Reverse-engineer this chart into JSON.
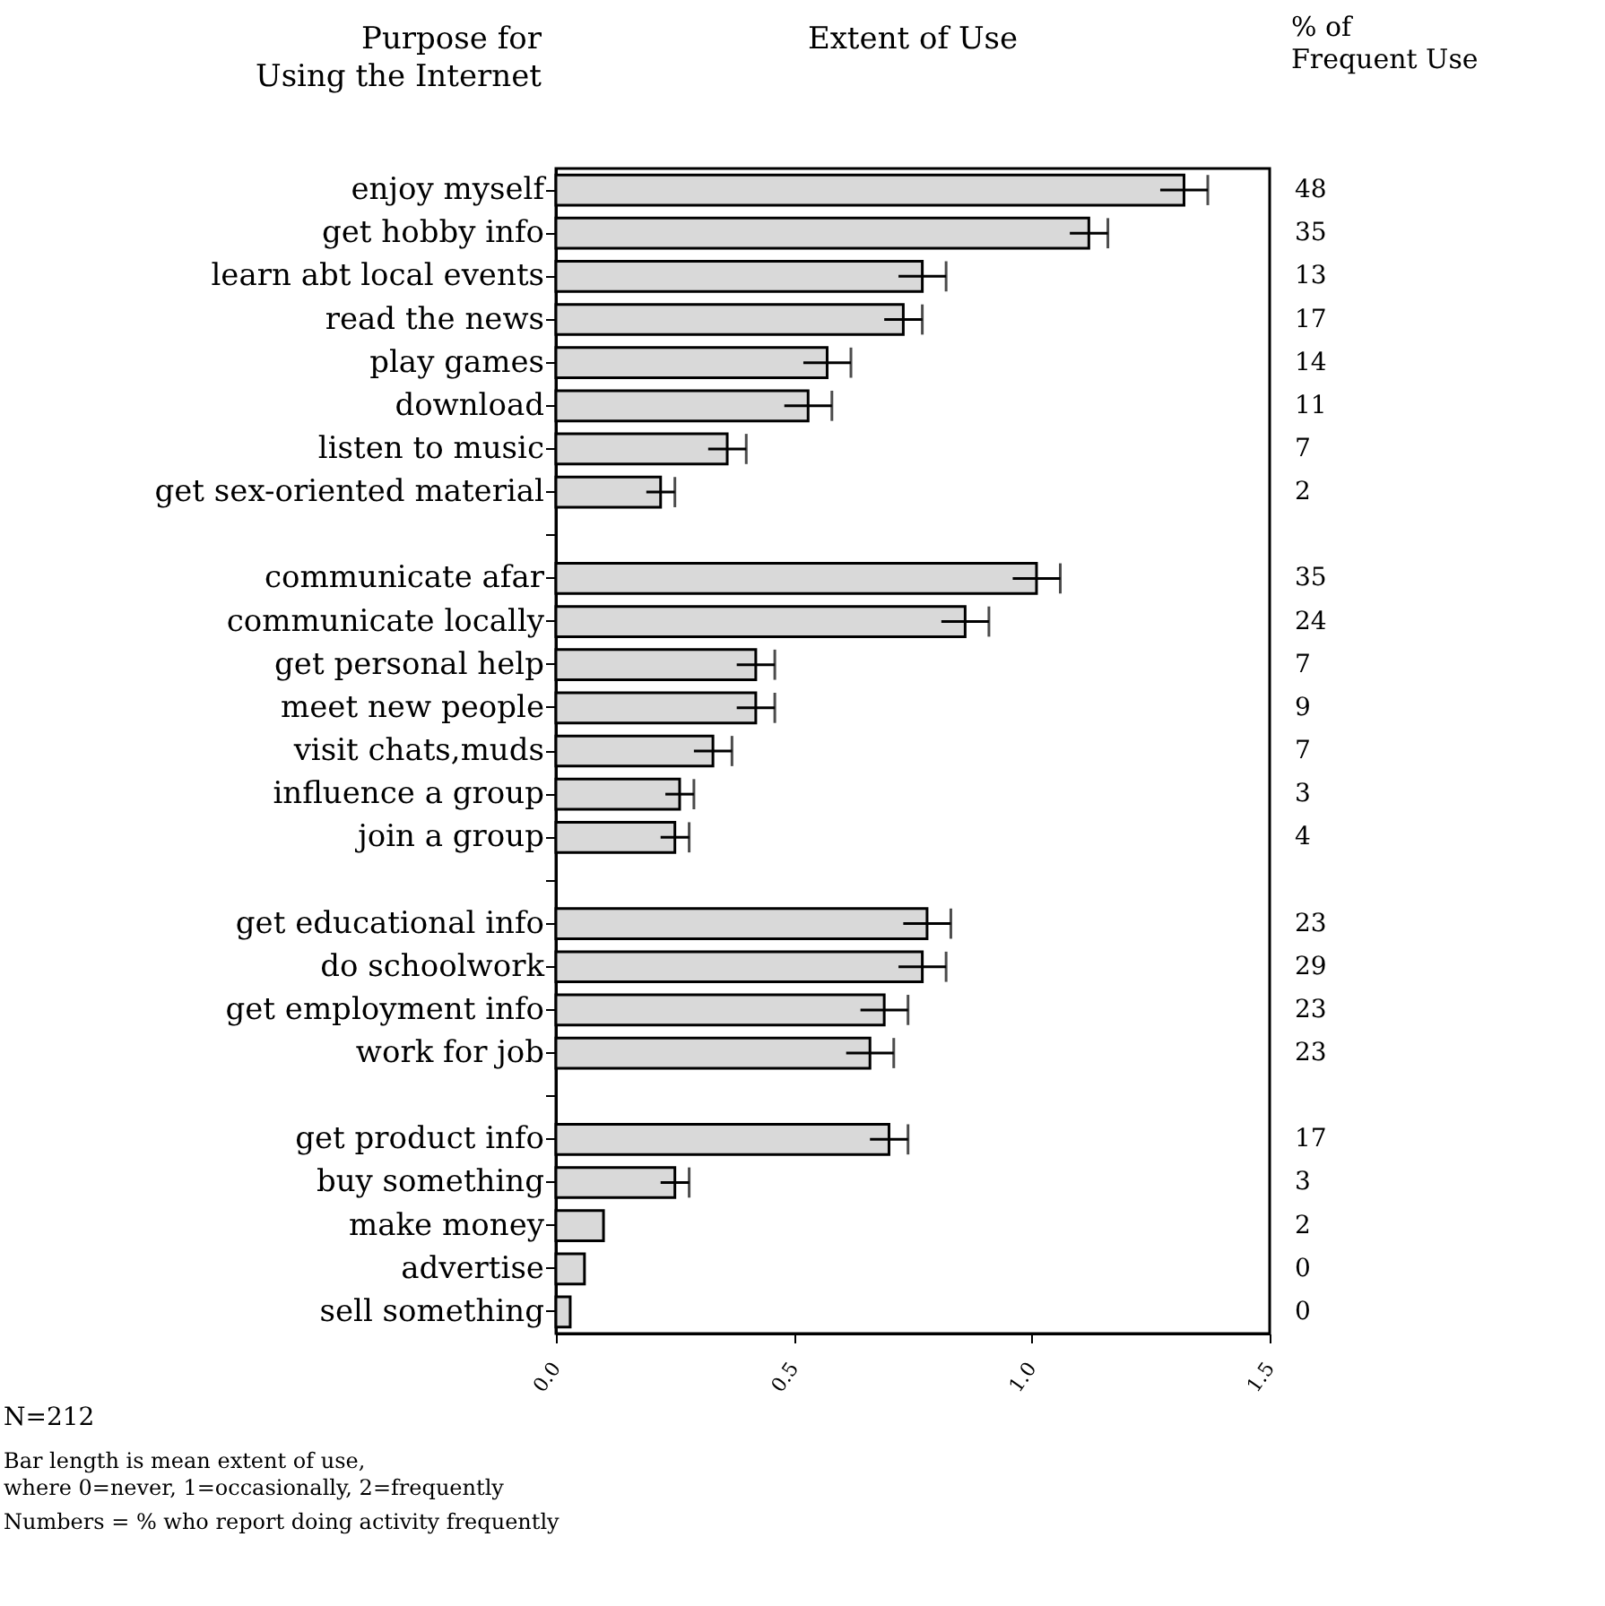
{
  "chart_data": {
    "type": "bar",
    "orientation": "horizontal",
    "title": "Extent of Use",
    "ylabel": "Purpose for\nUsing the Internet",
    "categories": [
      "enjoy myself",
      "get hobby info",
      "learn abt local events",
      "read the news",
      "play games",
      "download",
      "listen to music",
      "get sex-oriented material",
      null,
      "communicate afar",
      "communicate locally",
      "get personal help",
      "meet new people",
      "visit chats,muds",
      "influence a group",
      "join a group",
      null,
      "get educational info",
      "do schoolwork",
      "get employment info",
      "work for job",
      null,
      "get product info",
      "buy something",
      "make money",
      "advertise",
      "sell something"
    ],
    "values": [
      1.32,
      1.12,
      0.77,
      0.73,
      0.57,
      0.53,
      0.36,
      0.22,
      null,
      1.01,
      0.86,
      0.42,
      0.42,
      0.33,
      0.26,
      0.25,
      null,
      0.78,
      0.77,
      0.69,
      0.66,
      null,
      0.7,
      0.25,
      0.1,
      0.06,
      0.03
    ],
    "errors": [
      0.05,
      0.04,
      0.05,
      0.04,
      0.05,
      0.05,
      0.04,
      0.03,
      null,
      0.05,
      0.05,
      0.04,
      0.04,
      0.04,
      0.03,
      0.03,
      null,
      0.05,
      0.05,
      0.05,
      0.05,
      null,
      0.04,
      0.03,
      null,
      null,
      null
    ],
    "color": "#d9d9d9",
    "xlim": [
      0,
      1.5
    ],
    "xticks": [
      {
        "value": 0,
        "label": "0.0"
      },
      {
        "value": 0.5,
        "label": "0.5"
      },
      {
        "value": 1,
        "label": "1.0"
      },
      {
        "value": 1.5,
        "label": "1.5"
      }
    ],
    "grid": false,
    "annotations": [
      "% of\nFrequent Use",
      "48",
      "35",
      "13",
      "17",
      "14",
      "11",
      "7",
      "2",
      "35",
      "24",
      "7",
      "9",
      "7",
      "3",
      "4",
      "23",
      "29",
      "23",
      "23",
      "17",
      "3",
      "2",
      "0",
      "0",
      "N=212",
      "Bar length is mean extent of use,\n   where 0=never, 1=occasionally, 2=frequently",
      "Numbers = % who report doing activity frequently"
    ]
  }
}
